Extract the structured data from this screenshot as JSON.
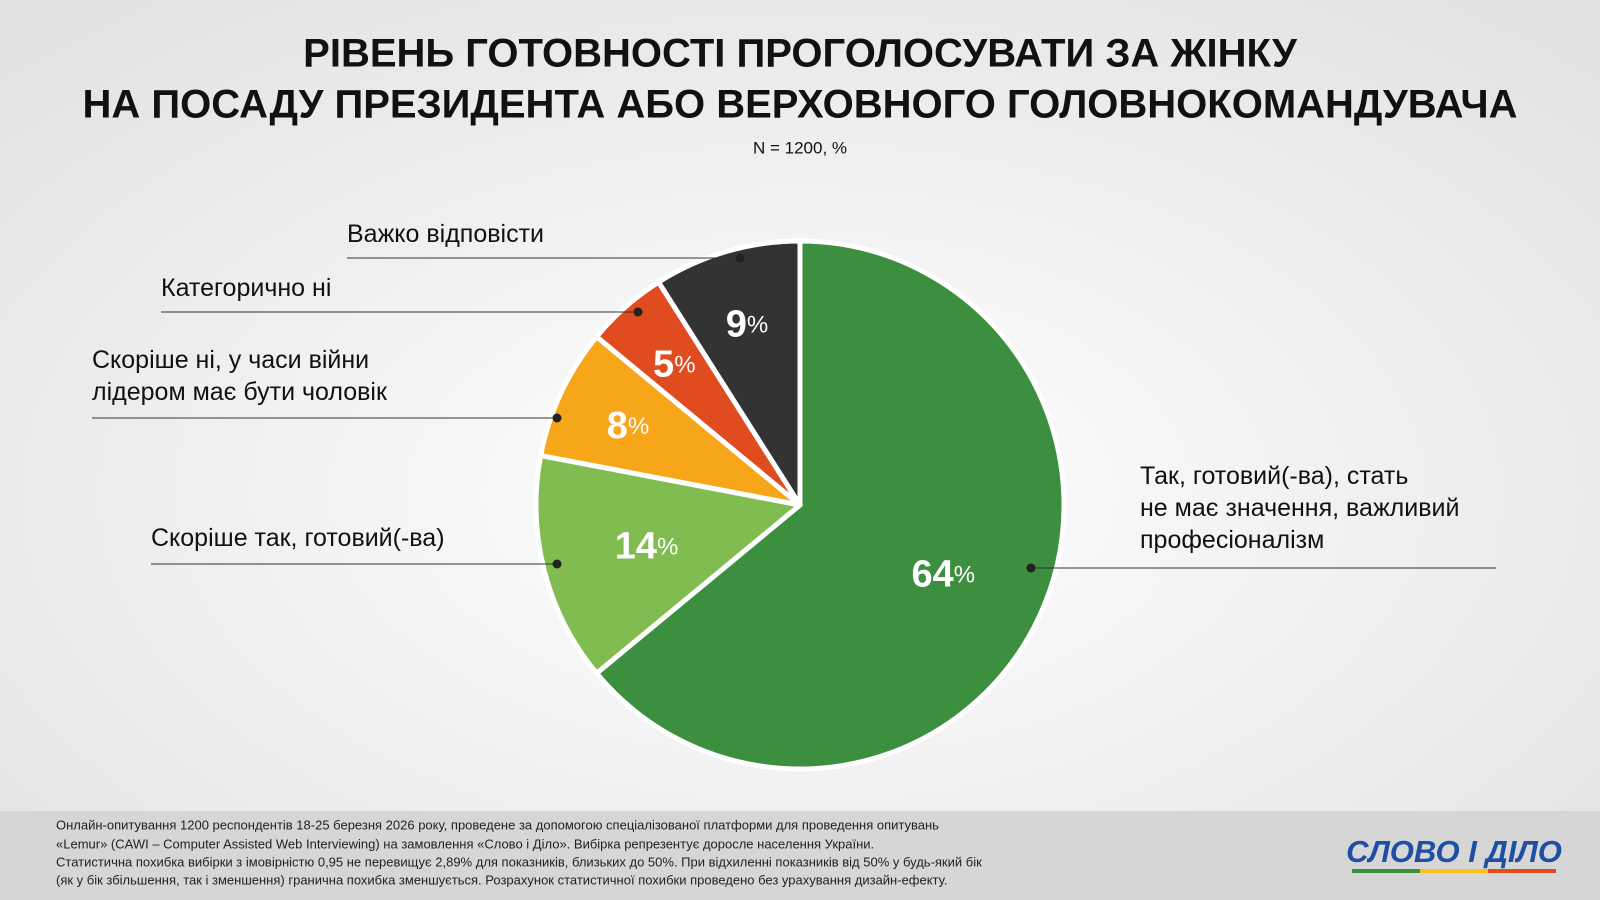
{
  "chart_data": {
    "type": "pie",
    "title": [
      "РІВЕНЬ ГОТОВНОСТІ ПРОГОЛОСУВАТИ ЗА ЖІНКУ",
      "НА ПОСАДУ ПРЕЗИДЕНТА АБО ВЕРХОВНОГО ГОЛОВНОКОМАНДУВАЧА"
    ],
    "subtitle": "N = 1200, %",
    "categories": [
      "Так, готовий(-ва), стать\nне має значення, важливий\nпрофесіоналізм",
      "Скоріше так, готовий(-ва)",
      "Скоріше ні, у часи війни\nлідером має бути чоловік",
      "Категорично ні",
      "Важко відповісти"
    ],
    "values": [
      64,
      14,
      8,
      5,
      9
    ],
    "value_labels": [
      "64%",
      "14%",
      "8%",
      "5%",
      "9%"
    ],
    "colors": [
      "#3b8f3e",
      "#80bc4f",
      "#f8a619",
      "#e04b1f",
      "#333333"
    ]
  },
  "footer": {
    "note": [
      "Онлайн-опитування 1200 респондентів 18-25 березня 2026 року, проведене за допомогою спеціалізованої платформи для проведення опитувань",
      "«Lemur» (CAWI – Computer Assisted Web Interviewing) на замовлення «Слово і Діло». Вибірка репрезентує доросле населення України.",
      "Статистична похибка вибірки з імовірністю 0,95 не перевищує 2,89% для показників, близьких до 50%. При відхиленні показників від 50% у будь-який бік",
      "(як у бік збільшення, так і зменшення) гранична похибка зменшується. Розрахунок статистичної похибки проведено без урахування дизайн-ефекту."
    ],
    "logo": "СЛОВО І ДІЛО"
  }
}
